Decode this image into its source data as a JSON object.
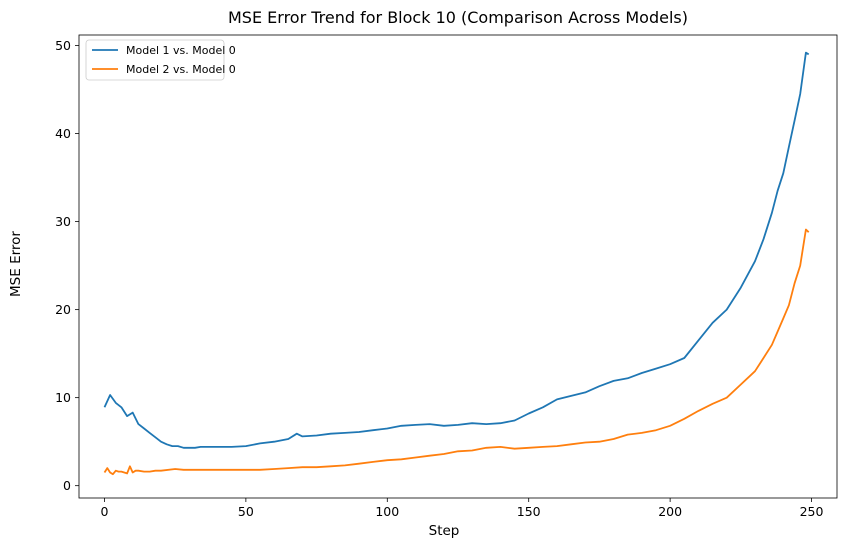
{
  "chart_data": {
    "type": "line",
    "title": "MSE Error Trend for Block 10 (Comparison Across Models)",
    "xlabel": "Step",
    "ylabel": "MSE Error",
    "xlim": [
      -9,
      259
    ],
    "ylim": [
      -1.4,
      51.2
    ],
    "xticks": [
      0,
      50,
      100,
      150,
      200,
      250
    ],
    "yticks": [
      0,
      10,
      20,
      30,
      40,
      50
    ],
    "grid": false,
    "legend_position": "top-left",
    "series": [
      {
        "name": "Model 1 vs. Model 0",
        "color": "#1f77b4",
        "x": [
          0,
          2,
          4,
          6,
          8,
          10,
          12,
          14,
          16,
          18,
          20,
          22,
          24,
          26,
          28,
          30,
          32,
          34,
          36,
          38,
          40,
          45,
          50,
          55,
          60,
          65,
          68,
          70,
          75,
          80,
          85,
          90,
          95,
          100,
          105,
          110,
          115,
          120,
          125,
          130,
          135,
          140,
          145,
          150,
          155,
          160,
          165,
          170,
          175,
          180,
          185,
          190,
          195,
          200,
          205,
          210,
          215,
          220,
          225,
          230,
          233,
          236,
          238,
          240,
          242,
          244,
          246,
          248,
          249
        ],
        "y": [
          8.9,
          10.3,
          9.4,
          8.9,
          7.9,
          8.3,
          7.0,
          6.5,
          6.0,
          5.5,
          5.0,
          4.7,
          4.5,
          4.5,
          4.3,
          4.3,
          4.3,
          4.4,
          4.4,
          4.4,
          4.4,
          4.4,
          4.5,
          4.8,
          5.0,
          5.3,
          5.9,
          5.6,
          5.7,
          5.9,
          6.0,
          6.1,
          6.3,
          6.5,
          6.8,
          6.9,
          7.0,
          6.8,
          6.9,
          7.1,
          7.0,
          7.1,
          7.4,
          8.2,
          8.9,
          9.8,
          10.2,
          10.6,
          11.3,
          11.9,
          12.2,
          12.8,
          13.3,
          13.8,
          14.5,
          16.5,
          18.5,
          20.0,
          22.5,
          25.5,
          28.0,
          31.0,
          33.5,
          35.5,
          38.5,
          41.5,
          44.5,
          49.2,
          49.0
        ]
      },
      {
        "name": "Model 2 vs. Model 0",
        "color": "#ff7f0e",
        "x": [
          0,
          1,
          2,
          3,
          4,
          5,
          6,
          8,
          9,
          10,
          11,
          12,
          14,
          16,
          18,
          20,
          25,
          28,
          30,
          35,
          40,
          45,
          50,
          55,
          60,
          65,
          70,
          75,
          80,
          85,
          90,
          95,
          100,
          105,
          110,
          115,
          120,
          125,
          130,
          135,
          140,
          145,
          150,
          155,
          160,
          165,
          170,
          175,
          180,
          185,
          190,
          195,
          200,
          205,
          210,
          215,
          220,
          225,
          230,
          233,
          236,
          238,
          240,
          242,
          244,
          246,
          248,
          249
        ],
        "y": [
          1.5,
          2.0,
          1.5,
          1.3,
          1.7,
          1.6,
          1.6,
          1.4,
          2.2,
          1.5,
          1.7,
          1.7,
          1.6,
          1.6,
          1.7,
          1.7,
          1.9,
          1.8,
          1.8,
          1.8,
          1.8,
          1.8,
          1.8,
          1.8,
          1.9,
          2.0,
          2.1,
          2.1,
          2.2,
          2.3,
          2.5,
          2.7,
          2.9,
          3.0,
          3.2,
          3.4,
          3.6,
          3.9,
          4.0,
          4.3,
          4.4,
          4.2,
          4.3,
          4.4,
          4.5,
          4.7,
          4.9,
          5.0,
          5.3,
          5.8,
          6.0,
          6.3,
          6.8,
          7.6,
          8.5,
          9.3,
          10.0,
          11.5,
          13.0,
          14.5,
          16.0,
          17.5,
          19.0,
          20.5,
          23.0,
          25.0,
          29.1,
          28.8
        ]
      }
    ]
  }
}
